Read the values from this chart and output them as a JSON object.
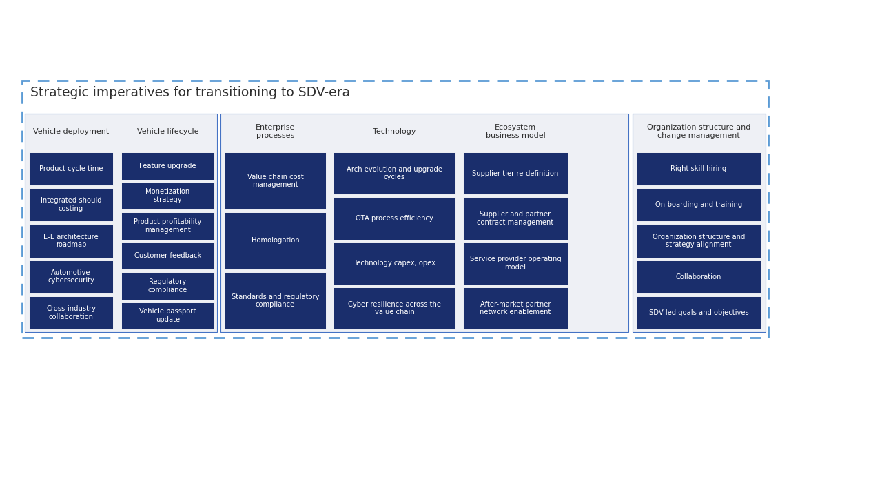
{
  "title": "Strategic imperatives for transitioning to SDV-era",
  "bg_color": "#ffffff",
  "outer_border_color": "#5b9bd5",
  "box_fill": "#1a2e6c",
  "box_text_color": "#ffffff",
  "header_text_color": "#2f2f2f",
  "section_bg": "#eef0f5",
  "group_bg": "#eef0f5",
  "group_border": "#4472c4",
  "columns": [
    {
      "header": "Vehicle deployment",
      "items": [
        "Product cycle time",
        "Integrated should\ncosting",
        "E-E architecture\nroadmap",
        "Automotive\ncybersecurity",
        "Cross-industry\ncollaboration"
      ],
      "group": 1
    },
    {
      "header": "Vehicle lifecycle",
      "items": [
        "Feature upgrade",
        "Monetization\nstrategy",
        "Product profitability\nmanagement",
        "Customer feedback",
        "Regulatory\ncompliance",
        "Vehicle passport\nupdate"
      ],
      "group": 1
    },
    {
      "header": "Enterprise\nprocesses",
      "items": [
        "Value chain cost\nmanagement",
        "Homologation",
        "Standards and regulatory\ncompliance"
      ],
      "group": 2
    },
    {
      "header": "Technology",
      "items": [
        "Arch evolution and upgrade\ncycles",
        "OTA process efficiency",
        "Technology capex, opex",
        "Cyber resilience across the\nvalue chain"
      ],
      "group": 2
    },
    {
      "header": "Ecosystem\nbusiness model",
      "items": [
        "Supplier tier re-definition",
        "Supplier and partner\ncontract management",
        "Service provider operating\nmodel",
        "After-market partner\nnetwork enablement"
      ],
      "group": 2
    },
    {
      "header": "Organization structure and\nchange management",
      "items": [
        "Right skill hiring",
        "On-boarding and training",
        "Organization structure and\nstrategy alignment",
        "Collaboration",
        "SDV-led goals and objectives"
      ],
      "group": 3
    }
  ]
}
